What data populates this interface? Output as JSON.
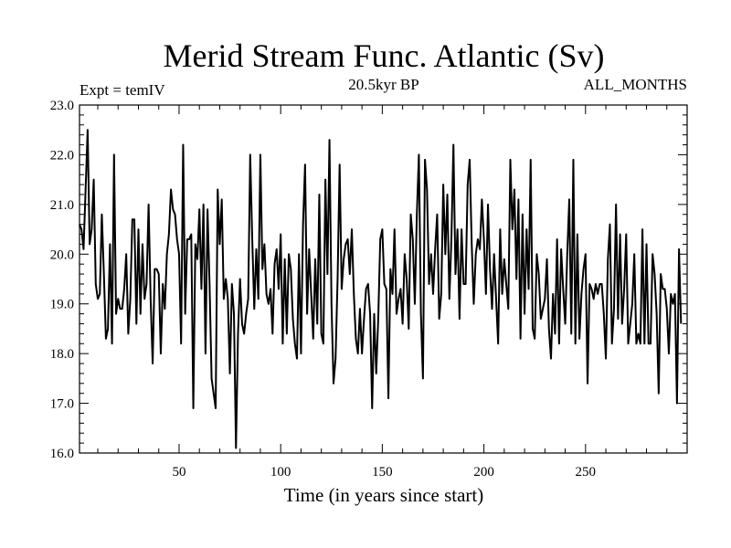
{
  "chart_data": {
    "type": "line",
    "title": "Merid Stream Func. Atlantic (Sv)",
    "subtitle_left": "Expt = temIV",
    "subtitle_center": "20.5kyr BP",
    "subtitle_right": "ALL_MONTHS",
    "xlabel": "Time (in years since start)",
    "ylabel": "",
    "xlim": [
      1,
      300
    ],
    "ylim": [
      16.0,
      23.0
    ],
    "x_ticks": [
      50,
      100,
      150,
      200,
      250
    ],
    "x_tick_labels": [
      "50",
      "100",
      "150",
      "200",
      "250"
    ],
    "y_ticks": [
      16.0,
      17.0,
      18.0,
      19.0,
      20.0,
      21.0,
      22.0,
      23.0
    ],
    "y_tick_labels": [
      "16.0",
      "17.0",
      "18.0",
      "19.0",
      "20.0",
      "21.0",
      "22.0",
      "23.0"
    ],
    "grid": false,
    "series": [
      {
        "color": "#000000",
        "x_start": 1,
        "x_step": 1,
        "values": [
          20.6,
          20.5,
          20.1,
          21.3,
          22.5,
          20.2,
          20.5,
          21.5,
          19.4,
          19.1,
          19.2,
          20.8,
          19.6,
          18.3,
          18.5,
          20.2,
          18.2,
          22.0,
          18.8,
          19.1,
          18.9,
          18.9,
          19.3,
          20.0,
          18.4,
          19.1,
          20.7,
          20.7,
          18.6,
          20.5,
          18.8,
          20.2,
          19.1,
          19.4,
          21.0,
          19.1,
          17.8,
          19.7,
          19.7,
          19.6,
          18.0,
          19.4,
          18.9,
          20.0,
          20.4,
          21.3,
          20.9,
          20.8,
          20.3,
          20.0,
          18.2,
          22.2,
          18.8,
          20.3,
          20.3,
          20.4,
          16.9,
          20.2,
          19.9,
          20.9,
          19.3,
          21.0,
          18.0,
          20.9,
          19.4,
          17.5,
          17.2,
          16.9,
          21.3,
          20.2,
          21.1,
          19.1,
          19.5,
          19.1,
          17.6,
          19.4,
          18.8,
          16.1,
          18.4,
          19.5,
          18.6,
          18.4,
          18.8,
          19.1,
          22.0,
          20.3,
          18.9,
          20.1,
          19.1,
          22.0,
          19.7,
          20.2,
          19.2,
          19.0,
          19.3,
          18.4,
          19.8,
          20.1,
          19.3,
          20.4,
          18.2,
          19.9,
          18.4,
          20.0,
          19.7,
          18.7,
          18.2,
          17.9,
          20.0,
          18.0,
          20.6,
          21.8,
          18.8,
          20.1,
          19.2,
          18.3,
          19.9,
          18.6,
          21.2,
          18.4,
          18.2,
          21.5,
          19.6,
          22.3,
          19.0,
          17.4,
          17.9,
          19.5,
          21.8,
          19.3,
          19.9,
          20.2,
          20.3,
          19.6,
          20.5,
          19.2,
          18.3,
          18.0,
          18.9,
          18.0,
          18.7,
          19.3,
          19.4,
          18.8,
          16.9,
          18.8,
          17.6,
          18.7,
          20.3,
          20.5,
          19.4,
          19.3,
          17.1,
          19.7,
          19.2,
          20.5,
          18.8,
          19.1,
          19.3,
          18.6,
          20.0,
          19.5,
          18.5,
          20.8,
          20.3,
          19.0,
          20.8,
          22.0,
          18.8,
          17.5,
          21.9,
          21.3,
          19.4,
          20.0,
          19.2,
          20.1,
          20.8,
          18.7,
          19.2,
          21.4,
          20.0,
          21.2,
          19.1,
          20.3,
          22.2,
          19.6,
          20.5,
          18.7,
          20.5,
          19.4,
          19.4,
          21.4,
          21.9,
          20.2,
          19.0,
          20.0,
          20.3,
          20.1,
          21.1,
          20.3,
          19.2,
          21.0,
          19.7,
          18.9,
          20.0,
          19.1,
          18.2,
          20.5,
          19.2,
          19.9,
          19.4,
          18.9,
          21.9,
          20.5,
          21.3,
          19.5,
          21.1,
          18.3,
          20.8,
          18.8,
          20.5,
          19.3,
          21.9,
          18.5,
          18.3,
          20.0,
          19.6,
          18.7,
          18.9,
          19.1,
          19.9,
          18.5,
          17.9,
          19.2,
          18.4,
          20.3,
          18.2,
          20.1,
          19.3,
          18.6,
          20.0,
          21.1,
          18.4,
          21.9,
          18.2,
          20.4,
          18.3,
          19.2,
          19.7,
          20.0,
          17.4,
          19.4,
          19.3,
          19.1,
          19.4,
          19.2,
          19.4,
          19.4,
          18.8,
          17.9,
          19.9,
          20.6,
          18.2,
          18.9,
          21.0,
          18.7,
          20.4,
          18.6,
          19.3,
          20.4,
          18.2,
          18.6,
          19.0,
          20.0,
          18.2,
          18.4,
          18.2,
          20.5,
          18.2,
          20.2,
          18.2,
          18.2,
          20.0,
          19.6,
          18.8,
          17.2,
          19.6,
          19.3,
          19.3,
          18.9,
          18.0,
          19.2,
          19.0,
          19.2,
          17.0,
          20.1,
          18.6
        ]
      }
    ]
  }
}
